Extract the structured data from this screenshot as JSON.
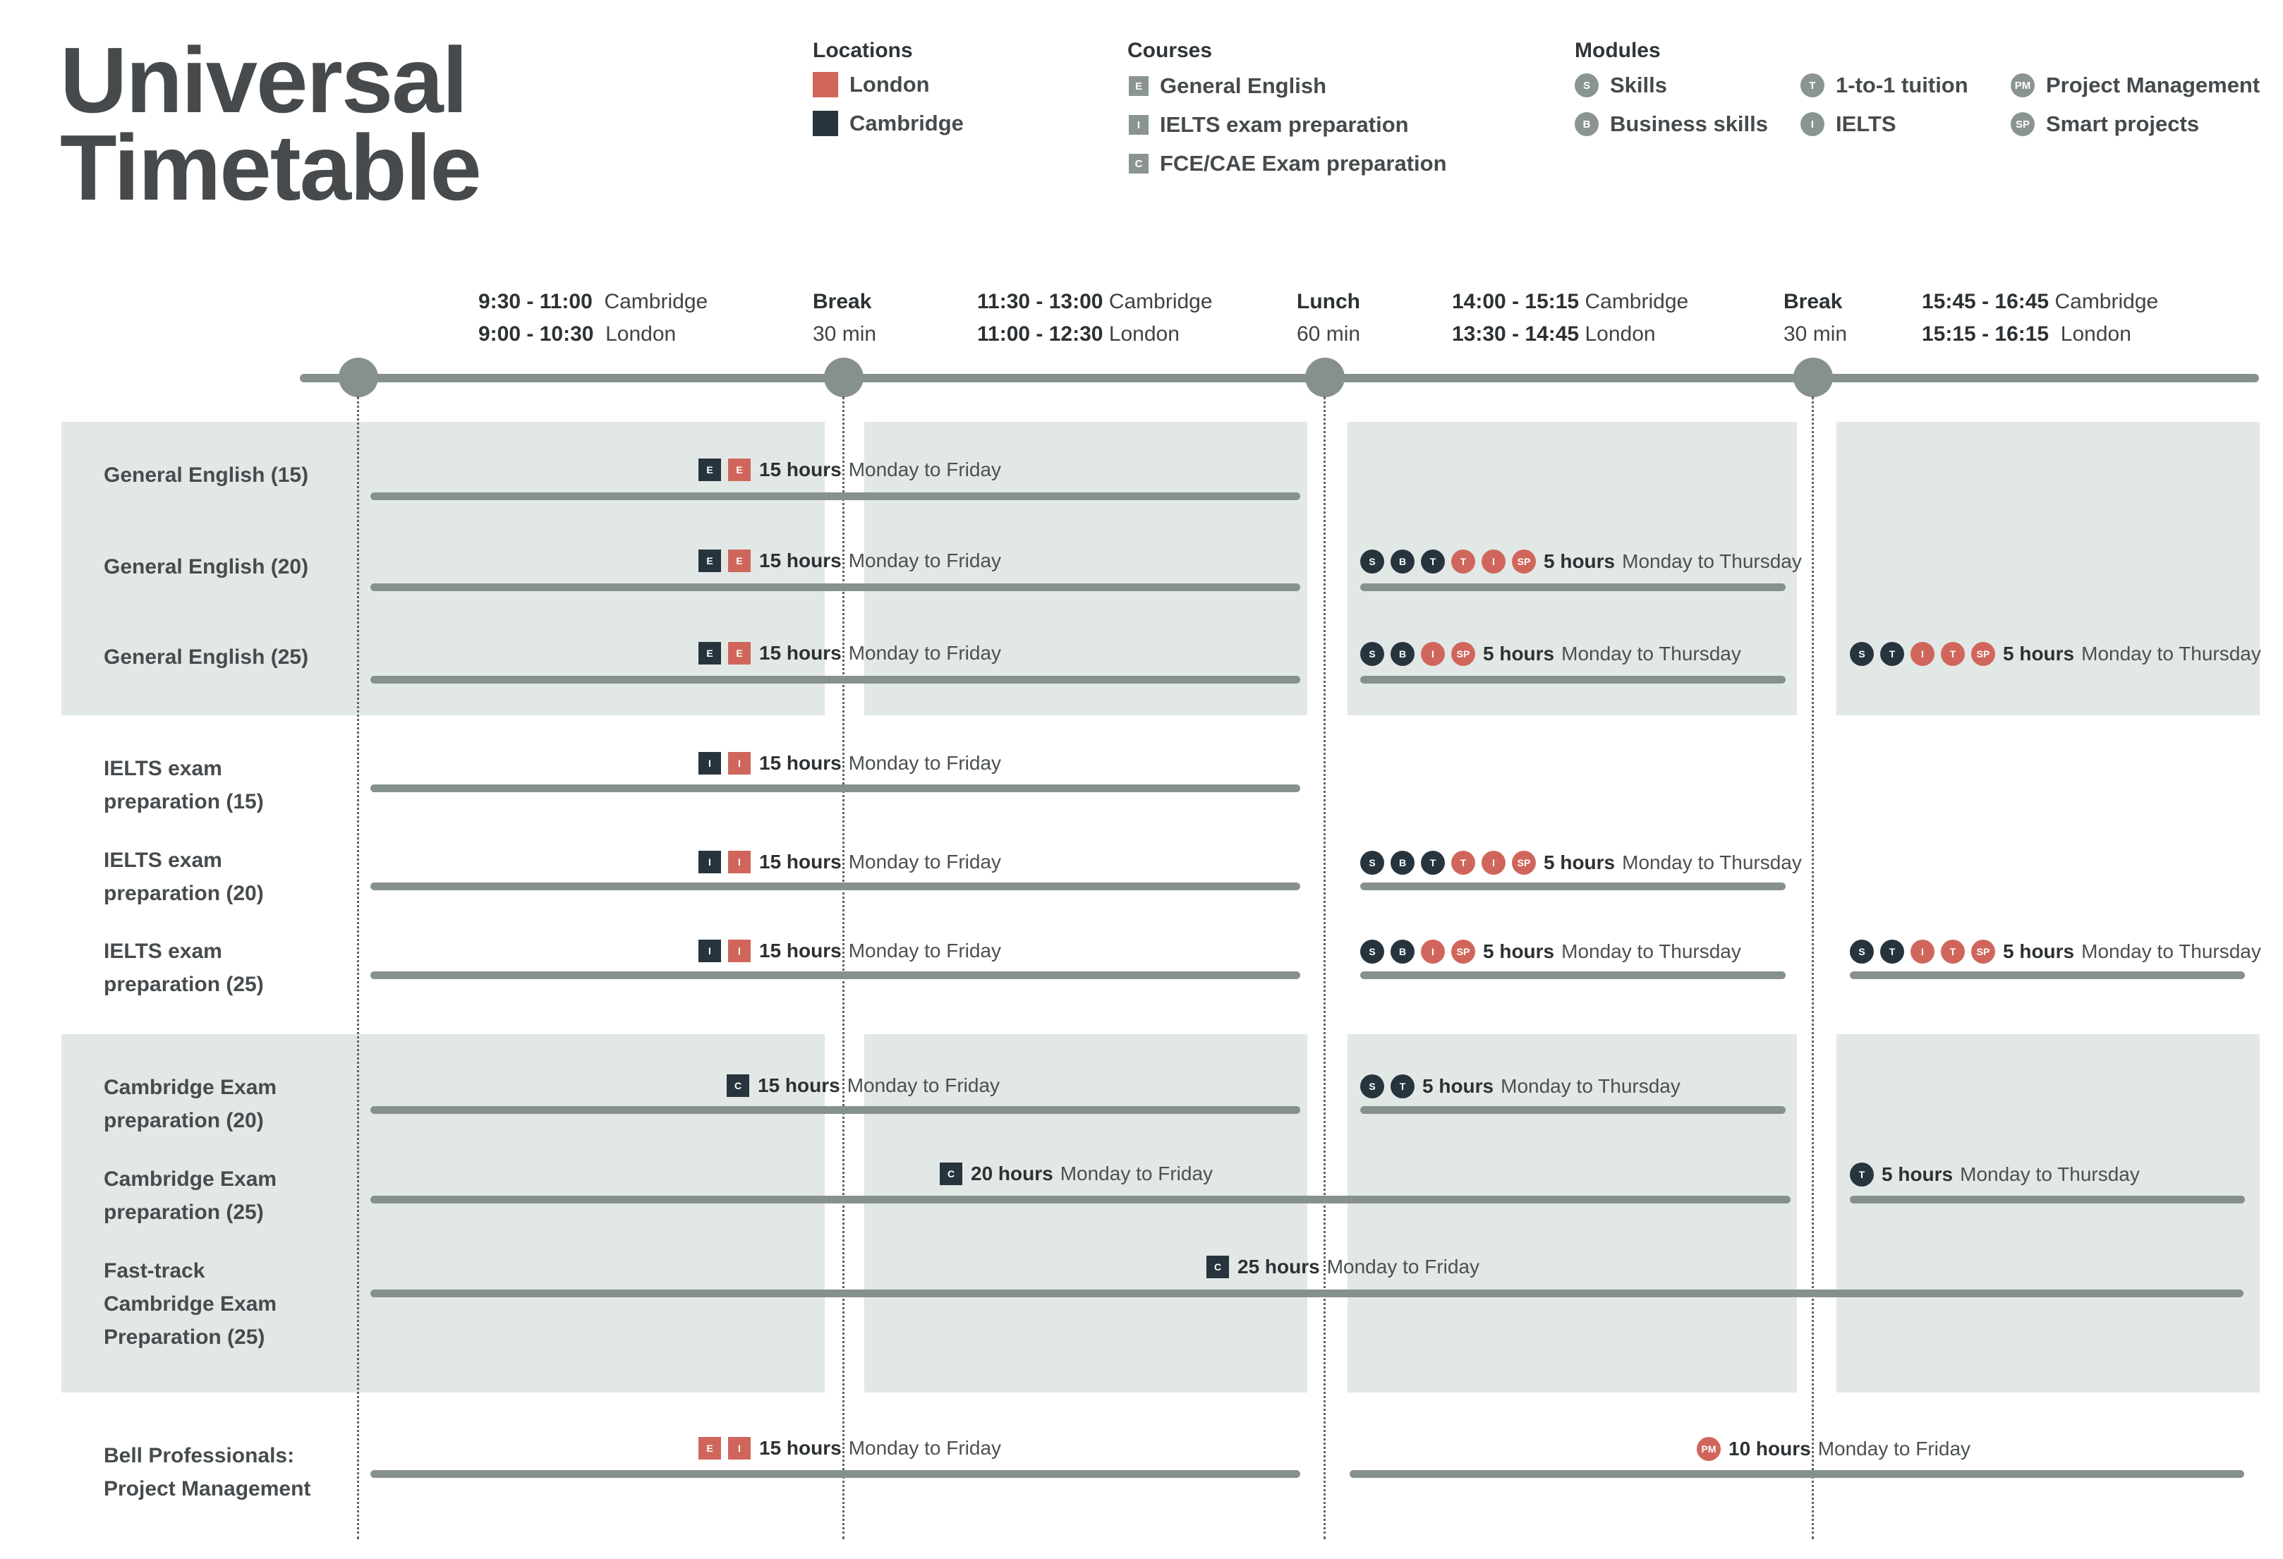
{
  "title": {
    "line1": "Universal",
    "line2": "Timetable"
  },
  "legend": {
    "locations": {
      "heading": "Locations",
      "items": [
        {
          "label": "London",
          "color": "#d0665b"
        },
        {
          "label": "Cambridge",
          "color": "#27343e"
        }
      ]
    },
    "courses": {
      "heading": "Courses",
      "items": [
        {
          "code": "E",
          "label": "General English"
        },
        {
          "code": "I",
          "label": "IELTS exam preparation"
        },
        {
          "code": "C",
          "label": "FCE/CAE Exam preparation"
        }
      ]
    },
    "modules": {
      "heading": "Modules",
      "items": [
        {
          "code": "S",
          "label": "Skills"
        },
        {
          "code": "B",
          "label": "Business skills"
        },
        {
          "code": "T",
          "label": "1-to-1 tuition"
        },
        {
          "code": "I",
          "label": "IELTS"
        },
        {
          "code": "PM",
          "label": "Project Management"
        },
        {
          "code": "SP",
          "label": "Smart projects"
        }
      ]
    }
  },
  "periods": [
    {
      "time1": "9:30 - 11:00",
      "loc1": "Cambridge",
      "time2": "9:00 - 10:30",
      "loc2": "London"
    },
    {
      "time1": "Break",
      "loc1": "",
      "time2": "",
      "loc2": "30 min"
    },
    {
      "time1": "11:30 - 13:00",
      "loc1": "Cambridge",
      "time2": "11:00 - 12:30",
      "loc2": "London"
    },
    {
      "time1": "Lunch",
      "loc1": "",
      "time2": "",
      "loc2": "60 min"
    },
    {
      "time1": "14:00 - 15:15",
      "loc1": "Cambridge",
      "time2": "13:30 - 14:45",
      "loc2": "London"
    },
    {
      "time1": "Break",
      "loc1": "",
      "time2": "",
      "loc2": "30 min"
    },
    {
      "time1": "15:45 - 16:45",
      "loc1": "Cambridge",
      "time2": "15:15 - 16:15",
      "loc2": "London"
    }
  ],
  "courses": [
    {
      "line1": "General English (15)",
      "line2": ""
    },
    {
      "line1": "General English (20)",
      "line2": ""
    },
    {
      "line1": "General English (25)",
      "line2": ""
    },
    {
      "line1": "IELTS exam",
      "line2": "preparation (15)"
    },
    {
      "line1": "IELTS exam",
      "line2": "preparation (20)"
    },
    {
      "line1": "IELTS exam",
      "line2": "preparation (25)"
    },
    {
      "line1": "Cambridge Exam",
      "line2": "preparation (20)"
    },
    {
      "line1": "Cambridge Exam",
      "line2": "preparation (25)"
    },
    {
      "line1": "Fast-track",
      "line2": "Cambridge Exam",
      "line3": "Preparation (25)"
    },
    {
      "line1": "Bell Professionals:",
      "line2": "Project Management"
    }
  ],
  "labels": {
    "h15": "15 hours",
    "h5": "5 hours",
    "h20": "20 hours",
    "h25": "25 hours",
    "h10": "10 hours",
    "mf": "Monday to Friday",
    "mt": "Monday to Thursday"
  },
  "colors": {
    "london": "#d0665b",
    "cambridge": "#27343e",
    "module": "#8a9593",
    "panel": "#e1e8e6",
    "bar": "#86918f"
  }
}
